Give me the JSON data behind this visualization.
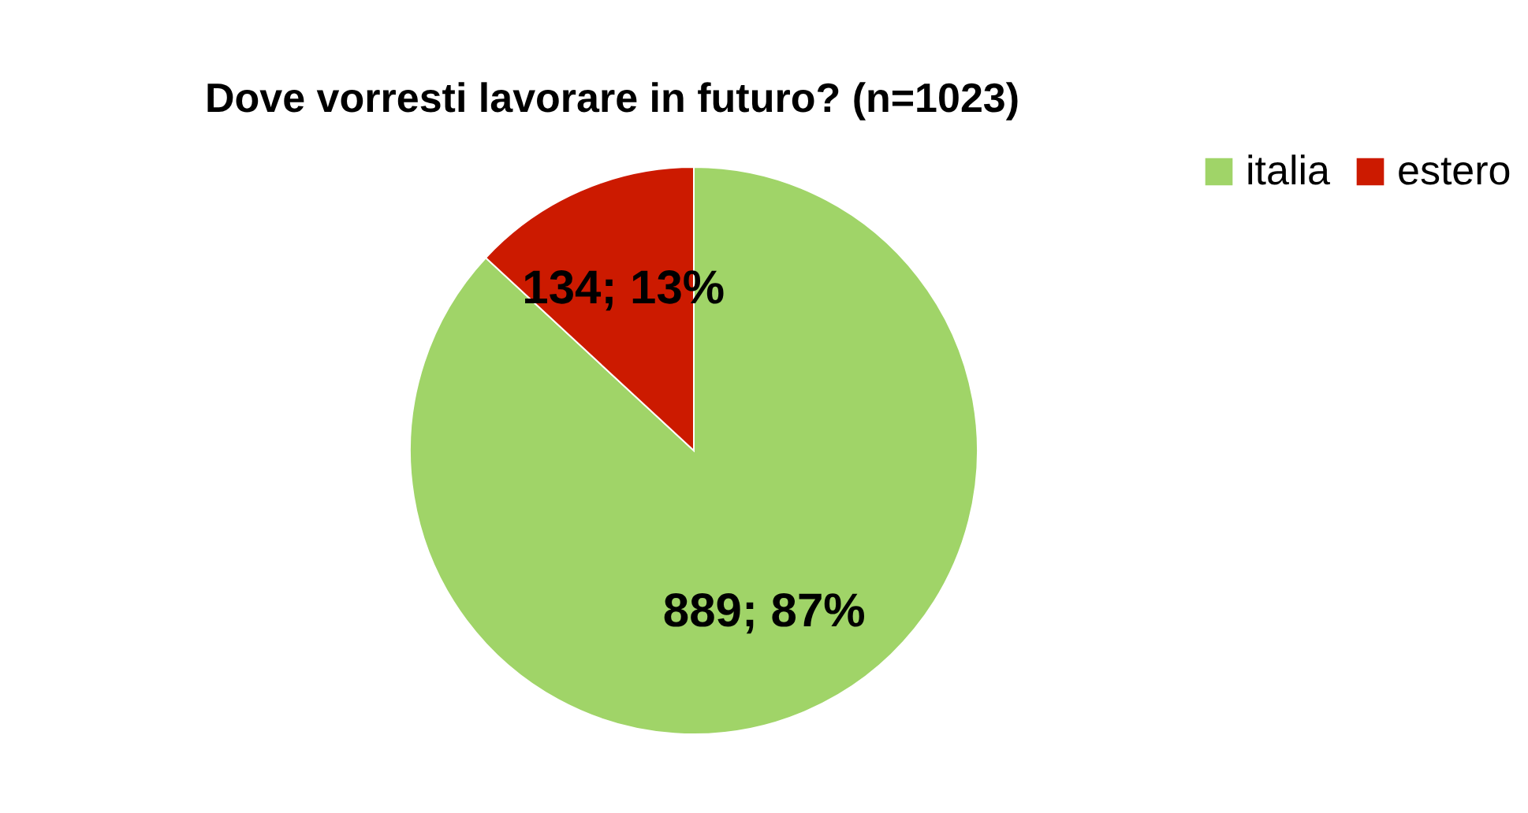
{
  "chart_data": {
    "type": "pie",
    "title": "Dove vorresti lavorare in futuro? (n=1023)",
    "categories": [
      "italia",
      "estero"
    ],
    "values": [
      889,
      134
    ],
    "colors": [
      "#a0d468",
      "#cc1a00"
    ],
    "value_labels": [
      "889; 87%",
      "134; 13%"
    ],
    "legend": "right"
  }
}
